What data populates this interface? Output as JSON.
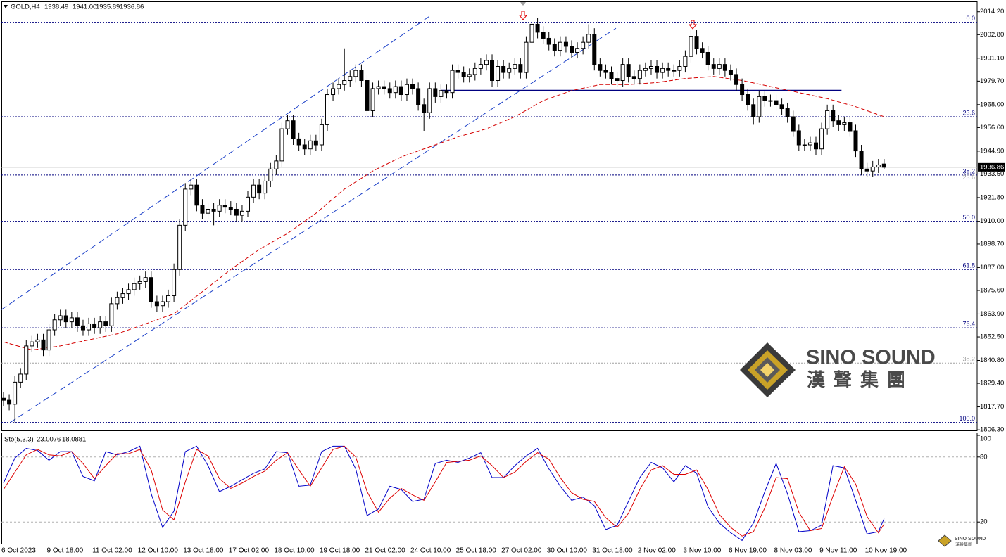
{
  "chart_data": [
    {
      "type": "candlestick",
      "symbol": "GOLD,H4",
      "header_values": [
        "1938.49",
        "1941.00",
        "1935.89",
        "1936.86"
      ],
      "categories": [
        "6 Oct 2023",
        null,
        null,
        null,
        null,
        null,
        null,
        null,
        "9 Oct 18:00",
        null,
        null,
        null,
        null,
        null,
        null,
        null,
        "11 Oct 02:00",
        null,
        null,
        null,
        null,
        null,
        null,
        null,
        "12 Oct 10:00",
        null,
        null,
        null,
        null,
        null,
        null,
        null,
        "13 Oct 18:00",
        null,
        null,
        null,
        null,
        null,
        null,
        null,
        "17 Oct 02:00",
        null,
        null,
        null,
        null,
        null,
        null,
        null,
        "18 Oct 10:00",
        null,
        null,
        null,
        null,
        null,
        null,
        null,
        "19 Oct 18:00",
        null,
        null,
        null,
        null,
        null,
        null,
        null,
        "21 Oct 02:00",
        null,
        null,
        null,
        null,
        null,
        null,
        null,
        "24 Oct 10:00",
        null,
        null,
        null,
        null,
        null,
        null,
        null,
        "25 Oct 18:00",
        null,
        null,
        null,
        null,
        null,
        null,
        null,
        "27 Oct 02:00",
        null,
        null,
        null,
        null,
        null,
        null,
        null,
        "30 Oct 10:00",
        null,
        null,
        null,
        null,
        null,
        null,
        null,
        "31 Oct 18:00",
        null,
        null,
        null,
        null,
        null,
        null,
        null,
        "2 Nov 02:00",
        null,
        null,
        null,
        null,
        null,
        null,
        null,
        "3 Nov 10:00",
        null,
        null,
        null,
        null,
        null,
        null,
        null,
        "6 Nov 19:00",
        null,
        null,
        null,
        null,
        null,
        null,
        null,
        "8 Nov 03:00",
        null,
        null,
        null,
        null,
        null,
        null,
        null,
        "9 Nov 11:00",
        null,
        null,
        null,
        null,
        null,
        null,
        null,
        "10 Nov 19:00",
        null,
        null,
        null
      ],
      "open": [
        1822,
        1821,
        1819,
        1830,
        1834,
        1848,
        1850,
        1851,
        1846,
        1856,
        1861,
        1863,
        1860,
        1862,
        1858,
        1856,
        1859,
        1857,
        1860,
        1858,
        1869,
        1872,
        1874,
        1876,
        1879,
        1880,
        1882,
        1870,
        1868,
        1870,
        1873,
        1886,
        1908,
        1926,
        1928,
        1918,
        1914,
        1916,
        1915,
        1918,
        1917,
        1916,
        1913,
        1915,
        1922,
        1928,
        1924,
        1930,
        1936,
        1940,
        1956,
        1960,
        1951,
        1948,
        1946,
        1950,
        1948,
        1958,
        1973,
        1976,
        1978,
        1980,
        1982,
        1985,
        1980,
        1965,
        1976,
        1977,
        1976,
        1974,
        1977,
        1973,
        1978,
        1976,
        1968,
        1964,
        1976,
        1972,
        1975,
        1974,
        1985,
        1984,
        1982,
        1983,
        1986,
        1988,
        1990,
        1980,
        1987,
        1984,
        1986,
        1988,
        1984,
        1999,
        2008,
        2004,
        2001,
        1998,
        1995,
        1999,
        1997,
        1994,
        1996,
        1999,
        2003,
        1988,
        1985,
        1984,
        1981,
        1980,
        1988,
        1982,
        1981,
        1985,
        1986,
        1987,
        1984,
        1986,
        1985,
        1985,
        1987,
        1992,
        2002,
        1996,
        1994,
        1988,
        1986,
        1988,
        1985,
        1983,
        1978,
        1973,
        1968,
        1962,
        1972,
        1970,
        1970,
        1968,
        1966,
        1962,
        1955,
        1948,
        1948,
        1949,
        1946,
        1956,
        1965,
        1960,
        1958,
        1959,
        1955,
        1945,
        1936,
        1935,
        1937,
        1938.49
      ],
      "high": [
        1825,
        1824,
        1833,
        1837,
        1851,
        1853,
        1854,
        1854,
        1859,
        1864,
        1866,
        1866,
        1865,
        1865,
        1861,
        1862,
        1862,
        1863,
        1863,
        1872,
        1875,
        1877,
        1879,
        1882,
        1883,
        1885,
        1885,
        1873,
        1873,
        1876,
        1889,
        1911,
        1929,
        1931,
        1931,
        1921,
        1919,
        1919,
        1921,
        1921,
        1920,
        1919,
        1918,
        1925,
        1931,
        1931,
        1933,
        1939,
        1943,
        1959,
        1963,
        1963,
        1954,
        1951,
        1953,
        1953,
        1961,
        1976,
        1979,
        1981,
        1996,
        1985,
        1988,
        1988,
        1983,
        1979,
        1980,
        1980,
        1979,
        1980,
        1980,
        1981,
        1981,
        1979,
        1971,
        1979,
        1979,
        1978,
        1978,
        1988,
        1988,
        1987,
        1986,
        1989,
        1991,
        1993,
        1993,
        1990,
        1990,
        1989,
        1991,
        1991,
        2002,
        2011,
        2011,
        2007,
        2004,
        2001,
        2002,
        2002,
        2000,
        1999,
        2002,
        2008,
        2006,
        1991,
        1988,
        1987,
        1984,
        1991,
        1991,
        1985,
        1988,
        1989,
        1990,
        1990,
        1989,
        1989,
        1988,
        1990,
        1995,
        2005,
        2005,
        1999,
        1997,
        1991,
        1991,
        1991,
        1988,
        1986,
        1981,
        1976,
        1971,
        1975,
        1975,
        1973,
        1973,
        1971,
        1969,
        1965,
        1958,
        1951,
        1952,
        1952,
        1959,
        1968,
        1968,
        1963,
        1962,
        1962,
        1958,
        1948,
        1939,
        1940,
        1941,
        1941
      ],
      "low": [
        1818,
        1816,
        1810,
        1827,
        1831,
        1845,
        1847,
        1843,
        1843,
        1853,
        1858,
        1857,
        1857,
        1855,
        1853,
        1853,
        1854,
        1854,
        1855,
        1855,
        1866,
        1869,
        1871,
        1873,
        1876,
        1877,
        1867,
        1865,
        1865,
        1867,
        1870,
        1883,
        1905,
        1923,
        1915,
        1911,
        1911,
        1908,
        1912,
        1914,
        1913,
        1910,
        1910,
        1912,
        1919,
        1921,
        1921,
        1927,
        1933,
        1937,
        1953,
        1948,
        1945,
        1943,
        1943,
        1945,
        1945,
        1955,
        1970,
        1973,
        1975,
        1977,
        1979,
        1977,
        1962,
        1962,
        1973,
        1973,
        1971,
        1971,
        1970,
        1970,
        1973,
        1965,
        1955,
        1961,
        1969,
        1969,
        1971,
        1971,
        1981,
        1979,
        1979,
        1980,
        1983,
        1985,
        1977,
        1977,
        1981,
        1981,
        1983,
        1981,
        1981,
        1996,
        2001,
        1998,
        1995,
        1992,
        1992,
        1994,
        1991,
        1991,
        1993,
        1996,
        1985,
        1982,
        1981,
        1978,
        1977,
        1977,
        1979,
        1978,
        1978,
        1982,
        1983,
        1981,
        1981,
        1982,
        1982,
        1982,
        1984,
        1989,
        1993,
        1991,
        1985,
        1983,
        1983,
        1982,
        1980,
        1975,
        1970,
        1965,
        1958,
        1959,
        1967,
        1967,
        1965,
        1963,
        1959,
        1952,
        1945,
        1945,
        1945,
        1943,
        1943,
        1953,
        1957,
        1955,
        1955,
        1952,
        1942,
        1933,
        1932,
        1932,
        1934,
        1935.89
      ],
      "close": [
        1821,
        1819,
        1830,
        1834,
        1848,
        1850,
        1851,
        1846,
        1856,
        1861,
        1863,
        1860,
        1862,
        1858,
        1856,
        1859,
        1857,
        1860,
        1858,
        1869,
        1872,
        1874,
        1876,
        1879,
        1880,
        1882,
        1870,
        1868,
        1870,
        1873,
        1886,
        1908,
        1926,
        1928,
        1918,
        1914,
        1916,
        1915,
        1918,
        1917,
        1916,
        1913,
        1915,
        1922,
        1928,
        1924,
        1930,
        1936,
        1940,
        1956,
        1960,
        1951,
        1948,
        1946,
        1950,
        1948,
        1958,
        1973,
        1976,
        1978,
        1980,
        1982,
        1985,
        1980,
        1965,
        1976,
        1977,
        1976,
        1974,
        1977,
        1973,
        1978,
        1976,
        1968,
        1964,
        1976,
        1972,
        1975,
        1974,
        1985,
        1984,
        1982,
        1983,
        1986,
        1988,
        1990,
        1980,
        1987,
        1984,
        1986,
        1988,
        1984,
        1999,
        2008,
        2004,
        2001,
        1998,
        1995,
        1999,
        1997,
        1994,
        1996,
        1999,
        2003,
        1988,
        1985,
        1984,
        1981,
        1980,
        1988,
        1982,
        1981,
        1985,
        1986,
        1987,
        1984,
        1986,
        1985,
        1985,
        1987,
        1992,
        2002,
        1996,
        1994,
        1988,
        1986,
        1988,
        1985,
        1983,
        1978,
        1973,
        1968,
        1962,
        1972,
        1970,
        1970,
        1968,
        1966,
        1962,
        1955,
        1948,
        1948,
        1949,
        1946,
        1956,
        1965,
        1960,
        1958,
        1959,
        1955,
        1945,
        1936,
        1935,
        1937,
        1938,
        1936.86
      ],
      "up_color": "#ffffff",
      "down_color": "#000000",
      "ylim": [
        1806,
        2019
      ],
      "yticks": [
        {
          "value": 2014.2,
          "label": "2014.20"
        },
        {
          "value": 2002.8,
          "label": "2002.80"
        },
        {
          "value": 1991.1,
          "label": "1991.10"
        },
        {
          "value": 1979.7,
          "label": "1979.70"
        },
        {
          "value": 1968,
          "label": "1968.00"
        },
        {
          "value": 1956.6,
          "label": "1956.60"
        },
        {
          "value": 1944.9,
          "label": "1944.90"
        },
        {
          "value": 1933.5,
          "label": "1933.50"
        },
        {
          "value": 1921.8,
          "label": "1921.80"
        },
        {
          "value": 1910,
          "label": "1910.00"
        },
        {
          "value": 1898.7,
          "label": "1898.70"
        },
        {
          "value": 1887,
          "label": "1887.00"
        },
        {
          "value": 1875.6,
          "label": "1875.60"
        },
        {
          "value": 1863.9,
          "label": "1863.90"
        },
        {
          "value": 1852.5,
          "label": "1852.50"
        },
        {
          "value": 1840.8,
          "label": "1840.80"
        },
        {
          "value": 1829.4,
          "label": "1829.40"
        },
        {
          "value": 1817.7,
          "label": "1817.70"
        },
        {
          "value": 1806.3,
          "label": "1806.30"
        }
      ],
      "grid": false,
      "moving_average": {
        "color": "#d40000",
        "x": [
          0,
          5,
          10,
          15,
          20,
          25,
          30,
          35,
          40,
          45,
          50,
          55,
          60,
          65,
          70,
          75,
          80,
          85,
          90,
          95,
          100,
          105,
          110,
          115,
          120,
          125,
          130,
          135,
          140,
          145,
          150,
          155
        ],
        "values": [
          1850,
          1846,
          1848,
          1851,
          1854,
          1859,
          1864,
          1875,
          1886,
          1896,
          1904,
          1914,
          1926,
          1935,
          1942,
          1947,
          1952,
          1956,
          1962,
          1970,
          1975,
          1978,
          1978,
          1979,
          1981,
          1982,
          1980,
          1977,
          1974,
          1971,
          1967,
          1962
        ]
      },
      "trendlines": [
        {
          "color": "#1a3fc8",
          "x": [
            -0.4,
            75
          ],
          "values": [
            1866,
            2012
          ]
        },
        {
          "color": "#1a3fc8",
          "x": [
            1.2,
            107.8
          ],
          "values": [
            1810,
            2006
          ]
        }
      ],
      "support_line": {
        "color": "#000080",
        "x": [
          77,
          147.5
        ],
        "values": [
          1975,
          1975
        ]
      },
      "fib_levels": [
        {
          "value": 2009,
          "label": "0.0"
        },
        {
          "value": 1962,
          "label": "23.6"
        },
        {
          "value": 1933,
          "label": "38.2"
        },
        {
          "value": 1910,
          "label": "50.0"
        },
        {
          "value": 1886,
          "label": "61.8"
        },
        {
          "value": 1857,
          "label": "76.4"
        },
        {
          "value": 1810,
          "label": "100.0"
        }
      ],
      "fib_color": "#00007f",
      "fib_levels_2": [
        {
          "value": 1930,
          "label": "23.6"
        },
        {
          "value": 1839.5,
          "label": "38.2"
        }
      ],
      "fib_color_2": "#a0a0a0"
    },
    {
      "type": "stochastic",
      "title": "Sto(5,3,3)",
      "x": [
        0,
        2,
        4,
        6,
        8,
        10,
        12,
        14,
        16,
        18,
        20,
        22,
        24,
        26,
        28,
        30,
        32,
        34,
        36,
        38,
        40,
        42,
        44,
        46,
        48,
        50,
        52,
        54,
        56,
        58,
        60,
        62,
        64,
        66,
        68,
        70,
        72,
        74,
        76,
        78,
        80,
        82,
        84,
        86,
        88,
        90,
        92,
        94,
        96,
        98,
        100,
        102,
        104,
        106,
        108,
        110,
        112,
        114,
        116,
        118,
        120,
        122,
        124,
        126,
        128,
        130,
        132,
        134,
        136,
        138,
        140,
        142,
        144,
        146,
        148,
        150,
        152,
        154,
        155
      ],
      "series": [
        {
          "color": "#0000c8",
          "values": [
            56,
            79,
            88,
            86,
            77,
            85,
            85,
            62,
            58,
            85,
            82,
            85,
            90,
            46,
            15,
            30,
            85,
            90,
            72,
            48,
            53,
            59,
            65,
            69,
            85,
            84,
            53,
            54,
            85,
            90,
            90,
            69,
            26,
            32,
            53,
            50,
            39,
            41,
            74,
            77,
            75,
            79,
            84,
            61,
            61,
            72,
            81,
            88,
            69,
            53,
            40,
            43,
            35,
            13,
            17,
            39,
            61,
            75,
            70,
            57,
            72,
            65,
            34,
            19,
            10,
            3,
            19,
            48,
            74,
            46,
            11,
            12,
            17,
            72,
            70,
            40,
            9,
            11,
            23.0076
          ]
        },
        {
          "color": "#dd0000",
          "values": [
            50,
            66,
            82,
            87,
            82,
            81,
            85,
            74,
            60,
            72,
            83,
            83,
            87,
            68,
            31,
            22,
            57,
            87,
            81,
            60,
            51,
            56,
            62,
            67,
            77,
            84,
            68,
            53,
            70,
            87,
            90,
            80,
            48,
            29,
            42,
            51,
            45,
            40,
            57,
            75,
            76,
            77,
            81,
            72,
            61,
            66,
            76,
            84,
            78,
            61,
            47,
            41,
            39,
            24,
            15,
            28,
            50,
            68,
            72,
            64,
            64,
            68,
            50,
            27,
            15,
            7,
            11,
            33,
            61,
            60,
            29,
            12,
            14,
            44,
            71,
            55,
            25,
            10,
            18.0881
          ]
        }
      ],
      "ylim": [
        0,
        100
      ],
      "yticks": [
        100,
        80,
        20
      ],
      "levels": [
        80,
        20
      ],
      "level_color": "#b0b0b0"
    }
  ],
  "logo": {
    "name": "SINO SOUND",
    "subtitle": "漢聲集團"
  }
}
